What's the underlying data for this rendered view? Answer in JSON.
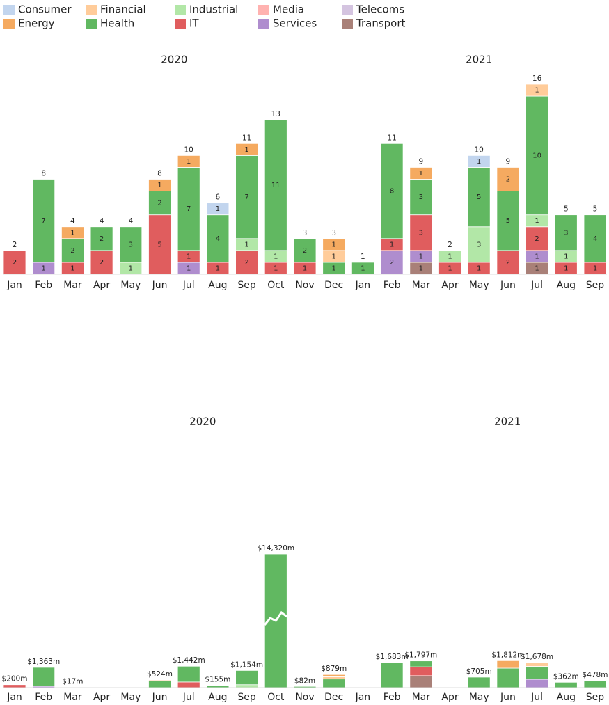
{
  "chart_data": [
    {
      "type": "bar",
      "stacked": true,
      "segment_labels": true,
      "ylim": [
        0,
        16
      ],
      "panels": [
        {
          "title": "2020",
          "categories": [
            "Jan",
            "Feb",
            "Mar",
            "Apr",
            "May",
            "Jun",
            "Jul",
            "Aug",
            "Sep",
            "Oct",
            "Nov",
            "Dec"
          ]
        },
        {
          "title": "2021",
          "categories": [
            "Jan",
            "Feb",
            "Mar",
            "Apr",
            "May",
            "Jun",
            "Jul",
            "Aug",
            "Sep"
          ]
        }
      ],
      "series": [
        {
          "name": "Consumer",
          "color": "#aec7e8",
          "values": [
            [
              null,
              null,
              null,
              null,
              null,
              null,
              null,
              1,
              null,
              null,
              null,
              null
            ],
            [
              null,
              null,
              null,
              null,
              1,
              null,
              null,
              null,
              null
            ]
          ]
        },
        {
          "name": "Energy",
          "color": "#f28e2b",
          "values": [
            [
              null,
              null,
              1,
              null,
              null,
              1,
              1,
              null,
              1,
              null,
              null,
              1
            ],
            [
              null,
              null,
              1,
              null,
              null,
              2,
              null,
              null,
              null
            ]
          ]
        },
        {
          "name": "Financial",
          "color": "#ffbb78",
          "values": [
            [
              null,
              null,
              null,
              null,
              null,
              null,
              null,
              null,
              null,
              null,
              null,
              1
            ],
            [
              null,
              null,
              null,
              null,
              null,
              null,
              1,
              null,
              null
            ]
          ]
        },
        {
          "name": "Health",
          "color": "#2ca02c",
          "values": [
            [
              null,
              7,
              2,
              2,
              3,
              2,
              7,
              4,
              7,
              11,
              2,
              1
            ],
            [
              1,
              8,
              3,
              null,
              5,
              5,
              10,
              3,
              4
            ]
          ]
        },
        {
          "name": "Industrial",
          "color": "#98df8a",
          "values": [
            [
              null,
              null,
              null,
              null,
              1,
              null,
              null,
              null,
              1,
              1,
              null,
              null
            ],
            [
              null,
              null,
              null,
              1,
              3,
              null,
              1,
              1,
              null
            ]
          ]
        },
        {
          "name": "IT",
          "color": "#d62728",
          "values": [
            [
              2,
              null,
              1,
              2,
              null,
              5,
              1,
              1,
              2,
              1,
              1,
              null
            ],
            [
              null,
              1,
              3,
              1,
              1,
              2,
              2,
              1,
              1
            ]
          ]
        },
        {
          "name": "Media",
          "color": "#ff9896",
          "values": [
            [
              null,
              null,
              null,
              null,
              null,
              null,
              null,
              null,
              null,
              null,
              null,
              null
            ],
            [
              null,
              null,
              null,
              null,
              null,
              null,
              null,
              null,
              null
            ]
          ]
        },
        {
          "name": "Services",
          "color": "#9467bd",
          "values": [
            [
              null,
              1,
              null,
              null,
              null,
              null,
              1,
              null,
              null,
              null,
              null,
              null
            ],
            [
              null,
              2,
              1,
              null,
              null,
              null,
              1,
              null,
              null
            ]
          ]
        },
        {
          "name": "Telecoms",
          "color": "#c5b0d5",
          "values": [
            [
              null,
              null,
              null,
              null,
              null,
              null,
              null,
              null,
              null,
              null,
              null,
              null
            ],
            [
              null,
              null,
              null,
              null,
              null,
              null,
              null,
              null,
              null
            ]
          ]
        },
        {
          "name": "Transport",
          "color": "#8c564b",
          "values": [
            [
              null,
              null,
              null,
              null,
              null,
              null,
              null,
              null,
              null,
              null,
              null,
              null
            ],
            [
              null,
              null,
              1,
              null,
              null,
              null,
              1,
              null,
              null
            ]
          ]
        }
      ],
      "totals": [
        [
          2,
          8,
          4,
          4,
          4,
          8,
          10,
          6,
          11,
          13,
          3,
          3
        ],
        [
          1,
          11,
          9,
          2,
          10,
          9,
          16,
          5,
          5
        ]
      ]
    },
    {
      "type": "bar",
      "stacked": true,
      "segment_labels": false,
      "ylim": [
        0,
        9000
      ],
      "panels": [
        {
          "title": "2020",
          "categories": [
            "Jan",
            "Feb",
            "Mar",
            "Apr",
            "May",
            "Jun",
            "Jul",
            "Aug",
            "Sep",
            "Oct",
            "Nov",
            "Dec"
          ]
        },
        {
          "title": "2021",
          "categories": [
            "Jan",
            "Feb",
            "Mar",
            "Apr",
            "May",
            "Jun",
            "Jul",
            "Aug",
            "Sep"
          ]
        }
      ],
      "series": [
        {
          "color": "#aec7e8",
          "values": [
            [
              null,
              null,
              null,
              null,
              null,
              null,
              null,
              null,
              null,
              null,
              null,
              null
            ],
            [
              null,
              null,
              null,
              null,
              null,
              null,
              null,
              null,
              null
            ]
          ]
        },
        {
          "color": "#f28e2b",
          "values": [
            [
              null,
              null,
              null,
              null,
              null,
              50,
              null,
              null,
              null,
              null,
              null,
              150
            ],
            [
              null,
              null,
              null,
              null,
              null,
              500,
              null,
              null,
              null
            ]
          ]
        },
        {
          "color": "#ffbb78",
          "values": [
            [
              null,
              null,
              null,
              null,
              null,
              null,
              null,
              null,
              null,
              null,
              null,
              150
            ],
            [
              null,
              null,
              null,
              null,
              null,
              null,
              250,
              null,
              null
            ]
          ]
        },
        {
          "color": "#2ca02c",
          "values": [
            [
              null,
              1273,
              17,
              null,
              null,
              474,
              1062,
              155,
              954,
              14320,
              82,
              579
            ],
            [
              null,
              1683,
              397,
              null,
              705,
              1312,
              868,
              362,
              478
            ]
          ]
        },
        {
          "color": "#98df8a",
          "values": [
            [
              null,
              null,
              null,
              null,
              null,
              null,
              null,
              null,
              200,
              null,
              null,
              null
            ],
            [
              null,
              null,
              null,
              null,
              null,
              null,
              null,
              null,
              null
            ]
          ]
        },
        {
          "color": "#d62728",
          "values": [
            [
              200,
              null,
              null,
              null,
              null,
              null,
              380,
              null,
              null,
              null,
              null,
              null
            ],
            [
              null,
              null,
              600,
              null,
              null,
              null,
              null,
              null,
              null
            ]
          ]
        },
        {
          "color": "#ff9896",
          "values": [
            [
              null,
              null,
              null,
              null,
              null,
              null,
              null,
              null,
              null,
              null,
              null,
              null
            ],
            [
              null,
              null,
              null,
              null,
              null,
              null,
              null,
              null,
              null
            ]
          ]
        },
        {
          "color": "#9467bd",
          "values": [
            [
              null,
              90,
              null,
              null,
              null,
              null,
              null,
              null,
              null,
              null,
              null,
              null
            ],
            [
              null,
              null,
              null,
              null,
              null,
              null,
              560,
              null,
              null
            ]
          ]
        },
        {
          "color": "#c5b0d5",
          "values": [
            [
              null,
              null,
              null,
              null,
              null,
              null,
              null,
              null,
              null,
              null,
              null,
              null
            ],
            [
              null,
              null,
              null,
              null,
              null,
              null,
              null,
              null,
              null
            ]
          ]
        },
        {
          "color": "#8c564b",
          "values": [
            [
              null,
              null,
              null,
              null,
              null,
              null,
              null,
              null,
              null,
              null,
              null,
              null
            ],
            [
              null,
              null,
              800,
              null,
              null,
              null,
              null,
              null,
              null
            ]
          ]
        }
      ],
      "totals": [
        [
          200,
          1363,
          17,
          null,
          null,
          524,
          1442,
          155,
          1154,
          14320,
          82,
          879
        ],
        [
          null,
          1683,
          1797,
          null,
          705,
          1812,
          1678,
          362,
          478
        ]
      ],
      "total_labels": [
        [
          "$200m",
          "$1,363m",
          "$17m",
          null,
          null,
          "$524m",
          "$1,442m",
          "$155m",
          "$1,154m",
          "$14,320m",
          "$82m",
          "$879m"
        ],
        [
          null,
          "$1,683m",
          "$1,797m",
          null,
          "$705m",
          "$1,812m",
          "$1,678m",
          "$362m",
          "$478m"
        ]
      ]
    }
  ]
}
